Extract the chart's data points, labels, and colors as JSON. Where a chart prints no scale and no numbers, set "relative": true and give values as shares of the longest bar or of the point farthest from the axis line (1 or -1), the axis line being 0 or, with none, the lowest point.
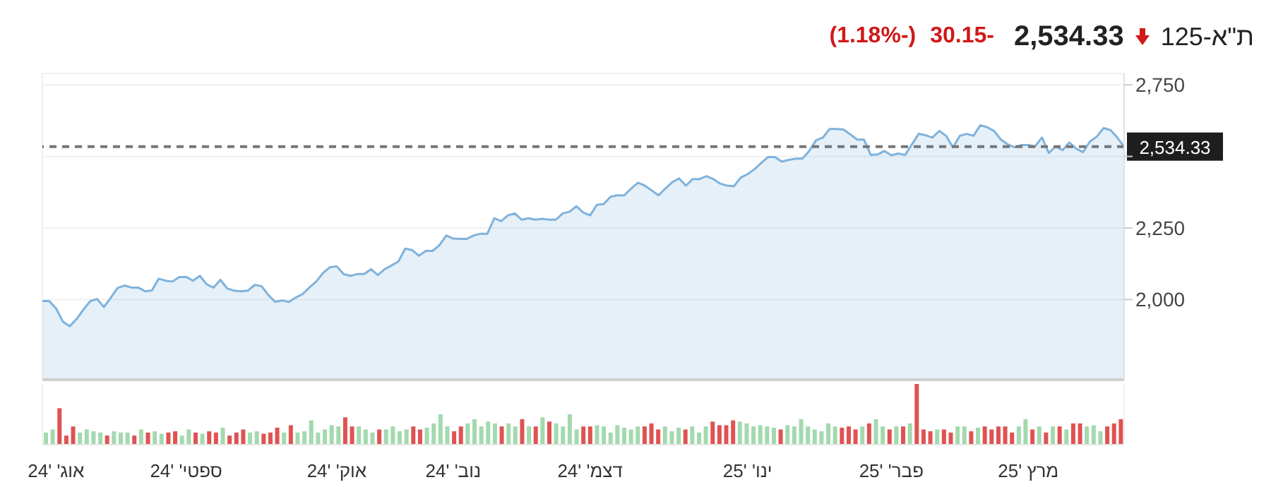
{
  "chart_data": [
    {
      "type": "area",
      "title": "ת\"א-125",
      "annotations": [
        "2,534.33",
        "-30.15",
        "(-1.18%)"
      ],
      "categories": [
        null,
        null,
        "אוג' '24",
        null,
        null,
        null,
        null,
        null,
        null,
        null,
        null,
        null,
        null,
        null,
        null,
        null,
        null,
        null,
        null,
        null,
        null,
        "ספטי' '24",
        null,
        null,
        null,
        null,
        null,
        null,
        null,
        null,
        null,
        null,
        null,
        null,
        null,
        null,
        null,
        null,
        null,
        null,
        null,
        null,
        null,
        "אוק' '24",
        null,
        null,
        null,
        null,
        null,
        null,
        null,
        null,
        null,
        null,
        null,
        null,
        null,
        null,
        null,
        null,
        "נוב' '24",
        null,
        null,
        null,
        null,
        null,
        null,
        null,
        null,
        null,
        null,
        null,
        null,
        null,
        null,
        null,
        null,
        null,
        null,
        null,
        "דצמ' '24",
        null,
        null,
        null,
        null,
        null,
        null,
        null,
        null,
        null,
        null,
        null,
        null,
        null,
        null,
        null,
        null,
        null,
        null,
        null,
        null,
        null,
        null,
        "ינו' '25",
        null,
        null,
        null,
        null,
        null,
        null,
        null,
        null,
        null,
        null,
        null,
        null,
        null,
        null,
        null,
        null,
        null,
        null,
        null,
        null,
        "פבר' '25",
        null,
        null,
        null,
        null,
        null,
        null,
        null,
        null,
        null,
        null,
        null,
        null,
        null,
        null,
        null,
        null,
        null,
        null,
        null,
        "מרץ '25",
        null,
        null,
        null,
        null,
        null,
        null,
        null,
        null,
        null,
        null,
        null,
        null,
        null,
        null
      ],
      "values": [
        1995,
        1995,
        1969,
        1923,
        1907,
        1932,
        1965,
        1995,
        2002,
        1974,
        2007,
        2041,
        2049,
        2042,
        2042,
        2029,
        2032,
        2073,
        2066,
        2063,
        2079,
        2079,
        2066,
        2083,
        2053,
        2042,
        2069,
        2039,
        2031,
        2029,
        2031,
        2051,
        2047,
        2016,
        1992,
        1997,
        1992,
        2007,
        2019,
        2042,
        2063,
        2093,
        2113,
        2116,
        2089,
        2083,
        2089,
        2089,
        2106,
        2086,
        2106,
        2119,
        2133,
        2178,
        2173,
        2153,
        2170,
        2170,
        2190,
        2224,
        2213,
        2212,
        2212,
        2224,
        2230,
        2230,
        2284,
        2274,
        2294,
        2301,
        2279,
        2284,
        2279,
        2282,
        2279,
        2279,
        2301,
        2307,
        2326,
        2304,
        2294,
        2331,
        2334,
        2359,
        2364,
        2364,
        2388,
        2408,
        2398,
        2381,
        2364,
        2388,
        2410,
        2423,
        2398,
        2421,
        2421,
        2431,
        2421,
        2405,
        2398,
        2396,
        2426,
        2438,
        2455,
        2477,
        2498,
        2498,
        2482,
        2488,
        2492,
        2492,
        2519,
        2556,
        2566,
        2596,
        2596,
        2594,
        2577,
        2559,
        2559,
        2505,
        2507,
        2519,
        2504,
        2510,
        2505,
        2542,
        2579,
        2574,
        2566,
        2589,
        2572,
        2532,
        2572,
        2579,
        2572,
        2609,
        2602,
        2589,
        2559,
        2542,
        2532,
        2540,
        2540,
        2535,
        2566,
        2512,
        2535,
        2522,
        2549,
        2527,
        2515,
        2552,
        2569,
        2599,
        2592,
        2566,
        2534
      ],
      "color": "#7fb2dc",
      "ylim": [
        1720,
        2790
      ],
      "yticks": [
        {
          "value": 2000,
          "label": "2,000"
        },
        {
          "value": 2250,
          "label": "2,250"
        },
        {
          "value": 2500,
          "label": null
        },
        {
          "value": 2750,
          "label": "2,750"
        }
      ],
      "grid": true,
      "ref_lines": [
        {
          "axis": "y",
          "value": 2534.33,
          "label": "2,534.33",
          "color": "#777777",
          "line_style": "dashed"
        }
      ]
    },
    {
      "type": "bar",
      "relative": true,
      "grid": "x",
      "tick_labels": false,
      "categories": [
        null,
        null,
        null,
        null,
        null,
        null,
        null,
        null,
        null,
        null,
        null,
        null,
        null,
        null,
        null,
        null,
        null,
        null,
        null,
        null,
        null,
        null,
        null,
        null,
        null,
        null,
        null,
        null,
        null,
        null,
        null,
        null,
        null,
        null,
        null,
        null,
        null,
        null,
        null,
        null,
        null,
        null,
        null,
        null,
        null,
        null,
        null,
        null,
        null,
        null,
        null,
        null,
        null,
        null,
        null,
        null,
        null,
        null,
        null,
        null,
        null,
        null,
        null,
        null,
        null,
        null,
        null,
        null,
        null,
        null,
        null,
        null,
        null,
        null,
        null,
        null,
        null,
        null,
        null,
        null,
        null,
        null,
        null,
        null,
        null,
        null,
        null,
        null,
        null,
        null,
        null,
        null,
        null,
        null,
        null,
        null,
        null,
        null,
        null,
        null,
        null,
        null,
        null,
        null,
        null,
        null,
        null,
        null,
        null,
        null,
        null,
        null,
        null,
        null,
        null,
        null,
        null,
        null,
        null,
        null,
        null,
        null,
        null,
        null,
        null,
        null,
        null,
        null,
        null,
        null,
        null,
        null,
        null,
        null,
        null,
        null,
        null,
        null,
        null,
        null,
        null,
        null,
        null,
        null,
        null,
        null,
        null,
        null,
        null,
        null,
        null,
        null,
        null,
        null,
        null,
        null,
        null,
        null,
        null
      ],
      "values": [
        0.2,
        0.25,
        0.6,
        0.15,
        0.3,
        0.2,
        0.25,
        0.22,
        0.2,
        0.15,
        0.22,
        0.2,
        0.2,
        0.15,
        0.25,
        0.2,
        0.22,
        0.18,
        0.2,
        0.22,
        0.15,
        0.25,
        0.2,
        0.18,
        0.22,
        0.2,
        0.28,
        0.15,
        0.2,
        0.25,
        0.2,
        0.22,
        0.18,
        0.2,
        0.28,
        0.2,
        0.32,
        0.2,
        0.22,
        0.4,
        0.2,
        0.25,
        0.32,
        0.3,
        0.45,
        0.3,
        0.3,
        0.25,
        0.2,
        0.25,
        0.25,
        0.3,
        0.22,
        0.25,
        0.3,
        0.25,
        0.28,
        0.35,
        0.5,
        0.3,
        0.22,
        0.3,
        0.35,
        0.42,
        0.3,
        0.38,
        0.35,
        0.3,
        0.35,
        0.3,
        0.42,
        0.3,
        0.3,
        0.45,
        0.38,
        0.35,
        0.3,
        0.5,
        0.25,
        0.3,
        0.3,
        0.32,
        0.3,
        0.2,
        0.32,
        0.28,
        0.25,
        0.3,
        0.3,
        0.35,
        0.25,
        0.3,
        0.22,
        0.28,
        0.25,
        0.3,
        0.2,
        0.3,
        0.38,
        0.32,
        0.32,
        0.4,
        0.38,
        0.35,
        0.3,
        0.32,
        0.3,
        0.28,
        0.25,
        0.32,
        0.3,
        0.42,
        0.3,
        0.25,
        0.22,
        0.35,
        0.3,
        0.28,
        0.3,
        0.25,
        0.3,
        0.35,
        0.42,
        0.3,
        0.25,
        0.3,
        0.3,
        0.35,
        1.0,
        0.25,
        0.22,
        0.25,
        0.25,
        0.2,
        0.3,
        0.3,
        0.22,
        0.28,
        0.3,
        0.25,
        0.3,
        0.3,
        0.2,
        0.3,
        0.42,
        0.25,
        0.3,
        0.2,
        0.3,
        0.3,
        0.25,
        0.35,
        0.35,
        0.3,
        0.32,
        0.22,
        0.3,
        0.35,
        0.42
      ],
      "colors": [
        "#a3d9ae",
        "#a3d9ae",
        "#e05252",
        "#e05252",
        "#e05252",
        "#a3d9ae",
        "#a3d9ae",
        "#a3d9ae",
        "#a3d9ae",
        "#e05252",
        "#a3d9ae",
        "#a3d9ae",
        "#a3d9ae",
        "#e05252",
        "#a3d9ae",
        "#e05252",
        "#a3d9ae",
        "#a3d9ae",
        "#e05252",
        "#e05252",
        "#a3d9ae",
        "#a3d9ae",
        "#e05252",
        "#a3d9ae",
        "#e05252",
        "#e05252",
        "#a3d9ae",
        "#e05252",
        "#e05252",
        "#e05252",
        "#a3d9ae",
        "#a3d9ae",
        "#e05252",
        "#e05252",
        "#e05252",
        "#a3d9ae",
        "#e05252",
        "#a3d9ae",
        "#a3d9ae",
        "#a3d9ae",
        "#a3d9ae",
        "#a3d9ae",
        "#a3d9ae",
        "#a3d9ae",
        "#e05252",
        "#e05252",
        "#a3d9ae",
        "#a3d9ae",
        "#a3d9ae",
        "#e05252",
        "#a3d9ae",
        "#a3d9ae",
        "#a3d9ae",
        "#a3d9ae",
        "#e05252",
        "#e05252",
        "#a3d9ae",
        "#a3d9ae",
        "#a3d9ae",
        "#a3d9ae",
        "#e05252",
        "#e05252",
        "#a3d9ae",
        "#a3d9ae",
        "#a3d9ae",
        "#a3d9ae",
        "#a3d9ae",
        "#e05252",
        "#a3d9ae",
        "#a3d9ae",
        "#e05252",
        "#a3d9ae",
        "#e05252",
        "#a3d9ae",
        "#e05252",
        "#a3d9ae",
        "#a3d9ae",
        "#a3d9ae",
        "#a3d9ae",
        "#e05252",
        "#e05252",
        "#a3d9ae",
        "#a3d9ae",
        "#a3d9ae",
        "#a3d9ae",
        "#a3d9ae",
        "#a3d9ae",
        "#a3d9ae",
        "#e05252",
        "#e05252",
        "#e05252",
        "#a3d9ae",
        "#a3d9ae",
        "#a3d9ae",
        "#e05252",
        "#a3d9ae",
        "#a3d9ae",
        "#a3d9ae",
        "#e05252",
        "#e05252",
        "#e05252",
        "#e05252",
        "#a3d9ae",
        "#a3d9ae",
        "#a3d9ae",
        "#a3d9ae",
        "#a3d9ae",
        "#a3d9ae",
        "#e05252",
        "#a3d9ae",
        "#a3d9ae",
        "#a3d9ae",
        "#a3d9ae",
        "#a3d9ae",
        "#a3d9ae",
        "#a3d9ae",
        "#a3d9ae",
        "#e05252",
        "#e05252",
        "#e05252",
        "#a3d9ae",
        "#e05252",
        "#a3d9ae",
        "#a3d9ae",
        "#e05252",
        "#a3d9ae",
        "#e05252",
        "#a3d9ae",
        "#e05252",
        "#e05252",
        "#e05252",
        "#a3d9ae",
        "#e05252",
        "#e05252",
        "#a3d9ae",
        "#a3d9ae",
        "#e05252",
        "#a3d9ae",
        "#e05252",
        "#e05252",
        "#e05252",
        "#e05252",
        "#e05252",
        "#a3d9ae",
        "#a3d9ae",
        "#e05252",
        "#a3d9ae",
        "#e05252",
        "#a3d9ae",
        "#e05252",
        "#a3d9ae",
        "#e05252",
        "#e05252",
        "#a3d9ae",
        "#a3d9ae",
        "#a3d9ae",
        "#e05252",
        "#e05252",
        "#e05252"
      ]
    }
  ]
}
